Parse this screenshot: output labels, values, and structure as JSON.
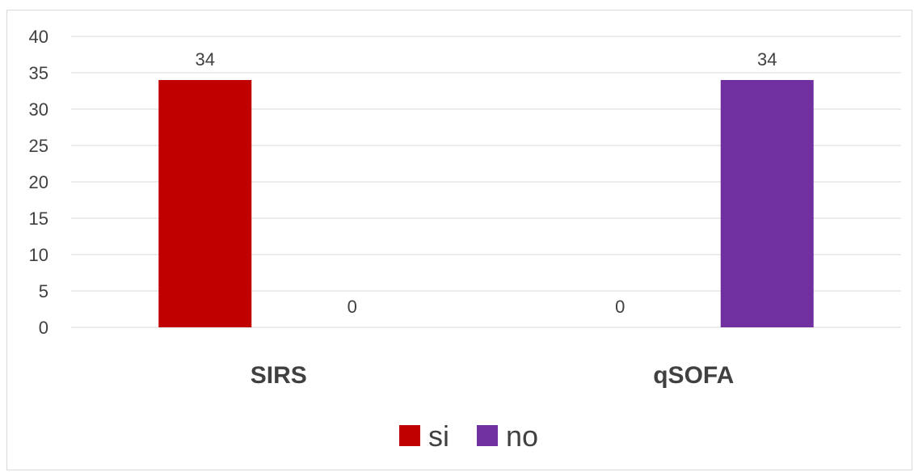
{
  "chart_data": {
    "type": "bar",
    "categories": [
      "SIRS",
      "qSOFA"
    ],
    "series": [
      {
        "name": "si",
        "values": [
          34,
          0
        ],
        "color": "#C00000"
      },
      {
        "name": "no",
        "values": [
          0,
          34
        ],
        "color": "#7030A0"
      }
    ],
    "ylim": [
      0,
      40
    ],
    "yticks": [
      0,
      5,
      10,
      15,
      20,
      25,
      30,
      35,
      40
    ],
    "grid": true,
    "legend": "bottom",
    "data_labels": true
  }
}
